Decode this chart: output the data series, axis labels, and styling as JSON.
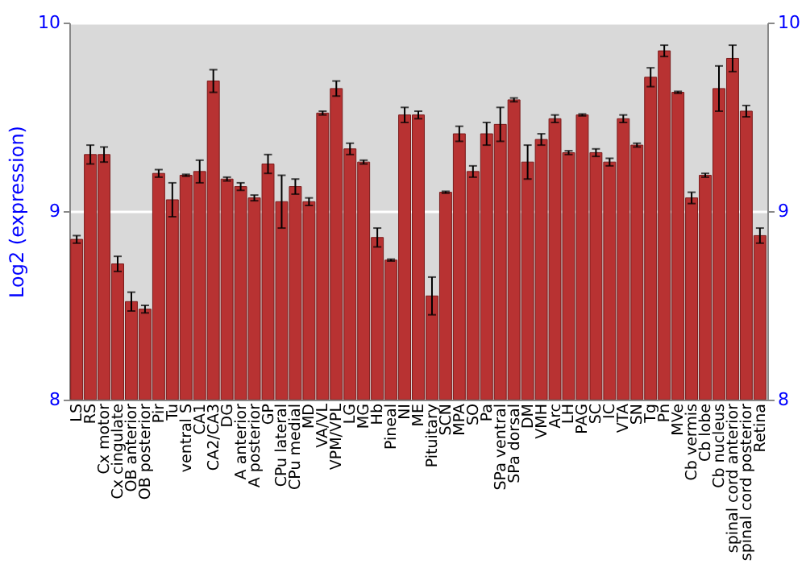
{
  "chart_data": {
    "type": "bar",
    "ylabel": "Log2 (expression)",
    "categories": [
      "LS",
      "RS",
      "Cx motor",
      "Cx cingulate",
      "OB anterior",
      "OB posterior",
      "Pir",
      "Tu",
      "ventral S",
      "CA1",
      "CA2/CA3",
      "DG",
      "A anterior",
      "A posterior",
      "GP",
      "CPu lateral",
      "CPu medial",
      "MD",
      "VA/VL",
      "VPM/VPL",
      "LG",
      "MG",
      "Hb",
      "Pineal",
      "NI",
      "ME",
      "Pituitary",
      "SCN",
      "MPA",
      "SO",
      "Pa",
      "SPa ventral",
      "SPa dorsal",
      "DM",
      "VMH",
      "Arc",
      "LH",
      "PAG",
      "SC",
      "IC",
      "VTA",
      "SN",
      "Tg",
      "Pn",
      "MVe",
      "Cb vermis",
      "Cb lobe",
      "Cb nucleus",
      "spinal cord anterior",
      "spinal cord posterior",
      "Retina"
    ],
    "values": [
      8.85,
      9.3,
      9.3,
      8.72,
      8.52,
      8.48,
      9.2,
      9.06,
      9.19,
      9.21,
      9.69,
      9.17,
      9.13,
      9.07,
      9.25,
      9.05,
      9.13,
      9.05,
      9.52,
      9.65,
      9.33,
      9.26,
      8.86,
      8.74,
      9.51,
      9.51,
      8.55,
      9.1,
      9.41,
      9.21,
      9.41,
      9.46,
      9.59,
      9.26,
      9.38,
      9.49,
      9.31,
      9.51,
      9.31,
      9.26,
      9.49,
      9.35,
      9.71,
      9.85,
      9.63,
      9.07,
      9.19,
      9.65,
      9.81,
      9.53,
      8.87
    ],
    "errors": [
      0.02,
      0.05,
      0.04,
      0.04,
      0.05,
      0.02,
      0.02,
      0.09,
      0.005,
      0.06,
      0.06,
      0.01,
      0.02,
      0.015,
      0.05,
      0.14,
      0.04,
      0.02,
      0.01,
      0.04,
      0.03,
      0.01,
      0.05,
      0.005,
      0.04,
      0.02,
      0.1,
      0.005,
      0.04,
      0.03,
      0.06,
      0.09,
      0.01,
      0.09,
      0.03,
      0.02,
      0.01,
      0.005,
      0.02,
      0.02,
      0.02,
      0.01,
      0.05,
      0.03,
      0.005,
      0.03,
      0.01,
      0.12,
      0.07,
      0.03,
      0.04
    ],
    "color": "#b83232",
    "ylim": [
      8,
      10
    ],
    "yticks": [
      8,
      9,
      10
    ],
    "y2lim": [
      8,
      10
    ],
    "y2ticks": [
      8,
      9,
      10
    ],
    "grid": "y"
  }
}
